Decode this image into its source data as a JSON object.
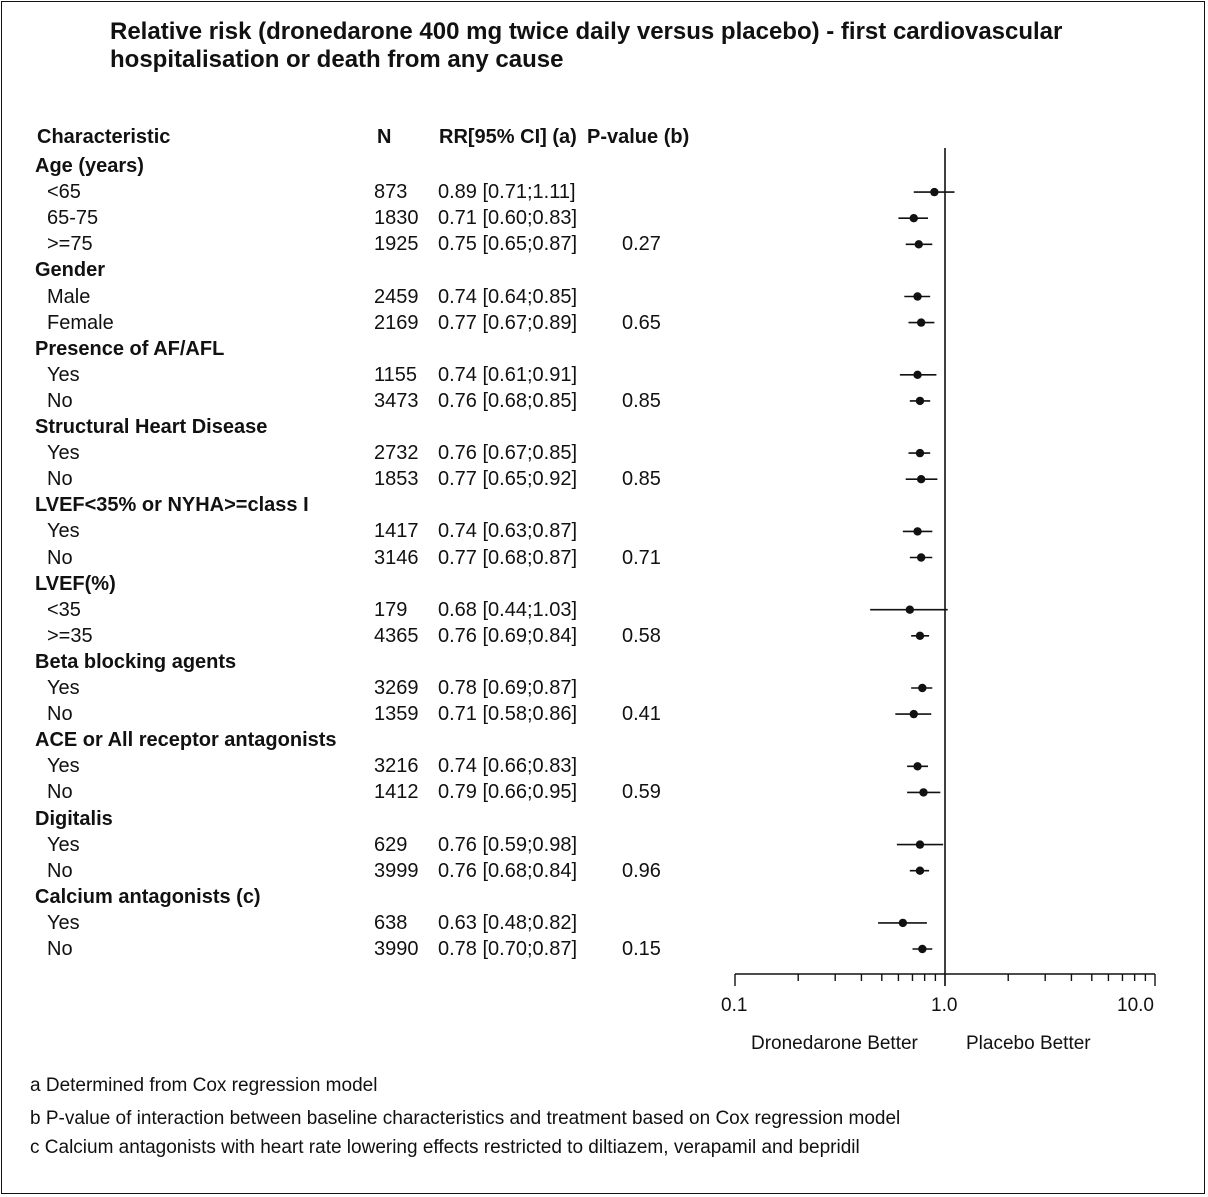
{
  "chart_data": {
    "type": "forest",
    "title": "Relative risk (dronedarone 400 mg twice daily versus placebo) - first cardiovascular hospitalisation or death from any cause",
    "columns": {
      "characteristic": "Characteristic",
      "n": "N",
      "rr": "RR[95% CI] (a)",
      "pvalue": "P-value (b)"
    },
    "x_axis": {
      "scale": "log",
      "ticks": [
        0.1,
        1.0,
        10.0
      ],
      "tick_labels": [
        "0.1",
        "1.0",
        "10.0"
      ],
      "xlim": [
        0.1,
        10.0
      ],
      "reference_line": 1.0,
      "left_label": "Dronedarone Better",
      "right_label": "Placebo Better"
    },
    "groups": [
      {
        "name": "Age (years)",
        "subgroups": [
          {
            "label": "<65",
            "n": "873",
            "rr": 0.89,
            "lo": 0.71,
            "hi": 1.11,
            "text": "0.89 [0.71;1.11]",
            "p": ""
          },
          {
            "label": "65-75",
            "n": "1830",
            "rr": 0.71,
            "lo": 0.6,
            "hi": 0.83,
            "text": "0.71 [0.60;0.83]",
            "p": ""
          },
          {
            "label": ">=75",
            "n": "1925",
            "rr": 0.75,
            "lo": 0.65,
            "hi": 0.87,
            "text": "0.75 [0.65;0.87]",
            "p": "0.27"
          }
        ]
      },
      {
        "name": "Gender",
        "subgroups": [
          {
            "label": "Male",
            "n": "2459",
            "rr": 0.74,
            "lo": 0.64,
            "hi": 0.85,
            "text": "0.74 [0.64;0.85]",
            "p": ""
          },
          {
            "label": "Female",
            "n": "2169",
            "rr": 0.77,
            "lo": 0.67,
            "hi": 0.89,
            "text": "0.77 [0.67;0.89]",
            "p": "0.65"
          }
        ]
      },
      {
        "name": "Presence of AF/AFL",
        "subgroups": [
          {
            "label": "Yes",
            "n": "1155",
            "rr": 0.74,
            "lo": 0.61,
            "hi": 0.91,
            "text": "0.74 [0.61;0.91]",
            "p": ""
          },
          {
            "label": "No",
            "n": "3473",
            "rr": 0.76,
            "lo": 0.68,
            "hi": 0.85,
            "text": "0.76 [0.68;0.85]",
            "p": "0.85"
          }
        ]
      },
      {
        "name": "Structural Heart Disease",
        "subgroups": [
          {
            "label": "Yes",
            "n": "2732",
            "rr": 0.76,
            "lo": 0.67,
            "hi": 0.85,
            "text": "0.76 [0.67;0.85]",
            "p": ""
          },
          {
            "label": "No",
            "n": "1853",
            "rr": 0.77,
            "lo": 0.65,
            "hi": 0.92,
            "text": "0.77 [0.65;0.92]",
            "p": "0.85"
          }
        ]
      },
      {
        "name": "LVEF<35% or NYHA>=class I",
        "subgroups": [
          {
            "label": "Yes",
            "n": "1417",
            "rr": 0.74,
            "lo": 0.63,
            "hi": 0.87,
            "text": "0.74 [0.63;0.87]",
            "p": ""
          },
          {
            "label": "No",
            "n": "3146",
            "rr": 0.77,
            "lo": 0.68,
            "hi": 0.87,
            "text": "0.77 [0.68;0.87]",
            "p": "0.71"
          }
        ]
      },
      {
        "name": "LVEF(%)",
        "subgroups": [
          {
            "label": "<35",
            "n": "179",
            "rr": 0.68,
            "lo": 0.44,
            "hi": 1.03,
            "text": "0.68 [0.44;1.03]",
            "p": ""
          },
          {
            "label": ">=35",
            "n": "4365",
            "rr": 0.76,
            "lo": 0.69,
            "hi": 0.84,
            "text": "0.76 [0.69;0.84]",
            "p": "0.58"
          }
        ]
      },
      {
        "name": "Beta blocking agents",
        "subgroups": [
          {
            "label": "Yes",
            "n": "3269",
            "rr": 0.78,
            "lo": 0.69,
            "hi": 0.87,
            "text": "0.78 [0.69;0.87]",
            "p": ""
          },
          {
            "label": "No",
            "n": "1359",
            "rr": 0.71,
            "lo": 0.58,
            "hi": 0.86,
            "text": "0.71 [0.58;0.86]",
            "p": "0.41"
          }
        ]
      },
      {
        "name": "ACE or All receptor antagonists",
        "subgroups": [
          {
            "label": "Yes",
            "n": "3216",
            "rr": 0.74,
            "lo": 0.66,
            "hi": 0.83,
            "text": "0.74 [0.66;0.83]",
            "p": ""
          },
          {
            "label": "No",
            "n": "1412",
            "rr": 0.79,
            "lo": 0.66,
            "hi": 0.95,
            "text": "0.79 [0.66;0.95]",
            "p": "0.59"
          }
        ]
      },
      {
        "name": "Digitalis",
        "subgroups": [
          {
            "label": "Yes",
            "n": "629",
            "rr": 0.76,
            "lo": 0.59,
            "hi": 0.98,
            "text": "0.76 [0.59;0.98]",
            "p": ""
          },
          {
            "label": "No",
            "n": "3999",
            "rr": 0.76,
            "lo": 0.68,
            "hi": 0.84,
            "text": "0.76 [0.68;0.84]",
            "p": "0.96"
          }
        ]
      },
      {
        "name": "Calcium antagonists (c)",
        "subgroups": [
          {
            "label": "Yes",
            "n": "638",
            "rr": 0.63,
            "lo": 0.48,
            "hi": 0.82,
            "text": "0.63 [0.48;0.82]",
            "p": ""
          },
          {
            "label": "No",
            "n": "3990",
            "rr": 0.78,
            "lo": 0.7,
            "hi": 0.87,
            "text": "0.78 [0.70;0.87]",
            "p": "0.15"
          }
        ]
      }
    ]
  },
  "footnotes": [
    "a Determined from Cox regression model",
    "b P-value of interaction between baseline characteristics and treatment based on Cox regression model",
    "c Calcium antagonists with heart rate lowering effects restricted to diltiazem, verapamil and bepridil"
  ]
}
